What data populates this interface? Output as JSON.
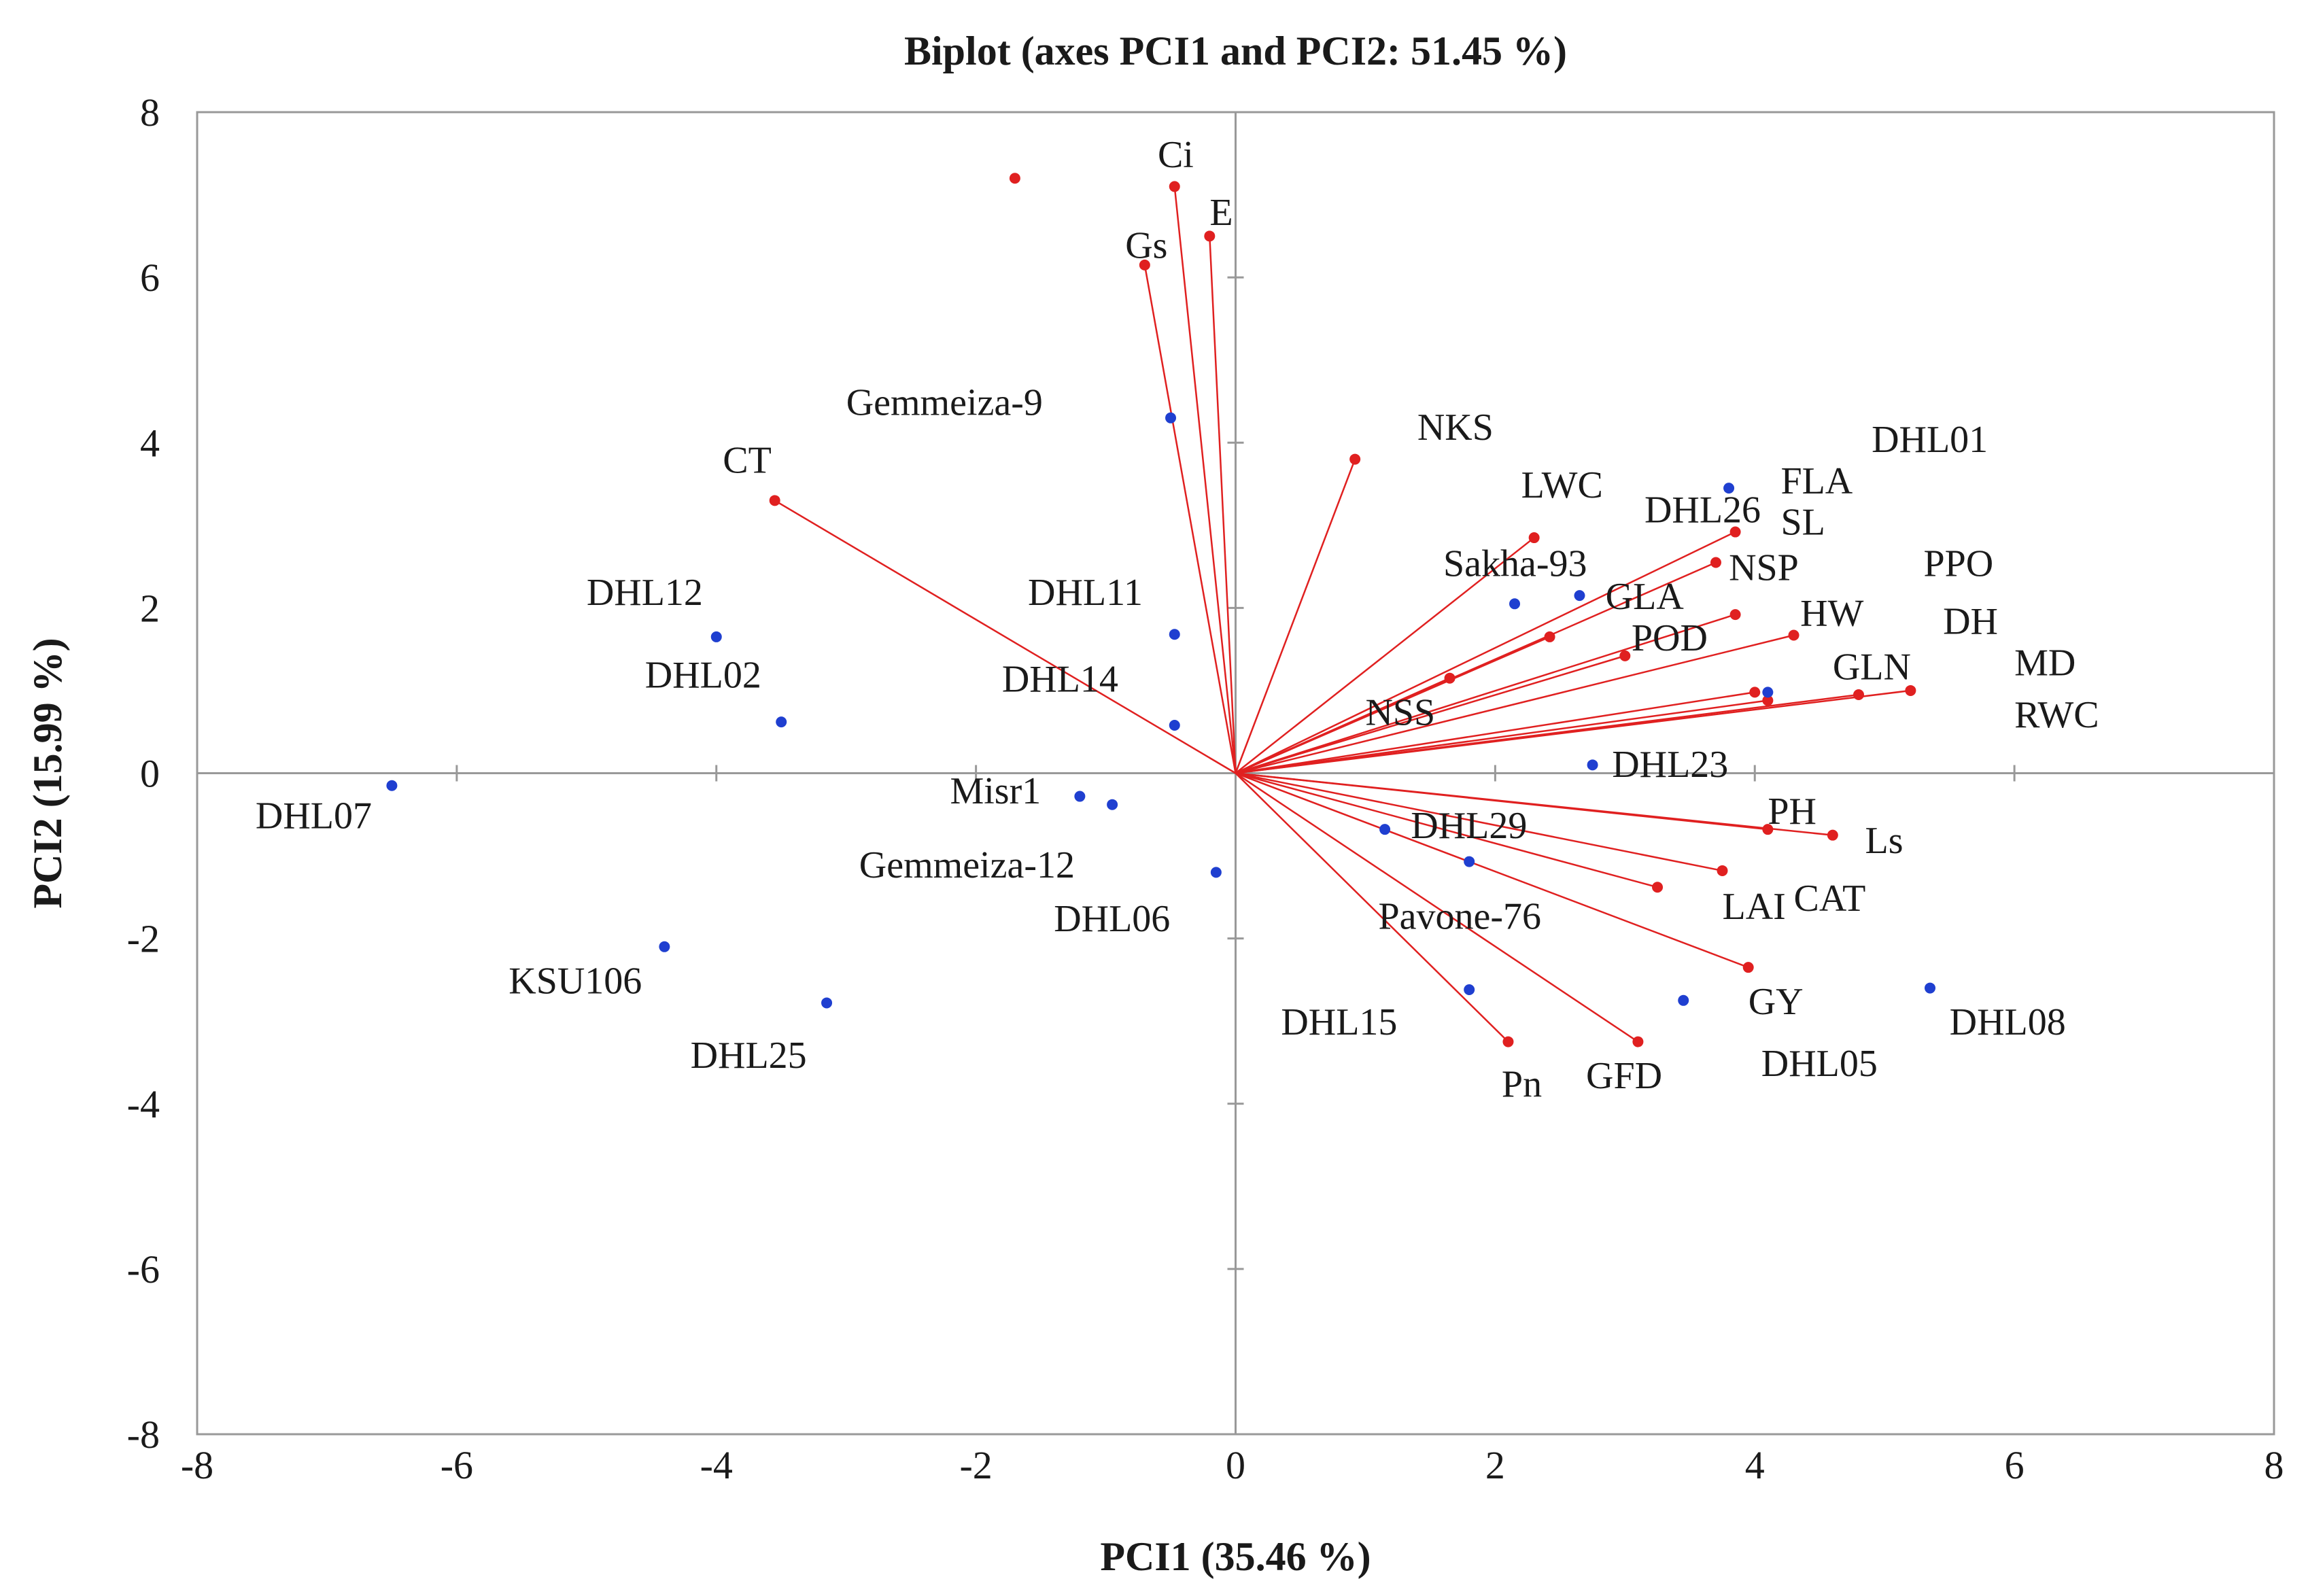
{
  "chart_data": {
    "type": "scatter",
    "title": "Biplot (axes PCI1 and PCI2: 51.45 %)",
    "xlabel": "PCI1 (35.46 %)",
    "ylabel": "PCI2 (15.99 %)",
    "xlim": [
      -8,
      8
    ],
    "ylim": [
      -8,
      8
    ],
    "xticks": [
      "-8",
      "-6",
      "-4",
      "-2",
      "0",
      "2",
      "4",
      "6",
      "8"
    ],
    "yticks": [
      "8",
      "6",
      "4",
      "2",
      "0",
      "-2",
      "-4",
      "-6",
      "-8"
    ],
    "colors": {
      "variables": "#e02020",
      "observations": "#1f3fd0",
      "axes": "#999999",
      "text": "#1a1a1a"
    },
    "variables": [
      {
        "name": "Ci",
        "x": -0.47,
        "y": 7.1
      },
      {
        "name": "E",
        "x": -0.2,
        "y": 6.5
      },
      {
        "name": "Gs",
        "x": -0.7,
        "y": 6.15
      },
      {
        "name": "CT",
        "x": -3.55,
        "y": 3.3
      },
      {
        "name": "NKS",
        "x": 0.92,
        "y": 3.8
      },
      {
        "name": "LWC",
        "x": 2.3,
        "y": 2.85
      },
      {
        "name": "SL",
        "x": 3.85,
        "y": 2.92
      },
      {
        "name": "NSP",
        "x": 3.7,
        "y": 2.55
      },
      {
        "name": "HW",
        "x": 3.85,
        "y": 1.92
      },
      {
        "name": "DH",
        "x": 4.3,
        "y": 1.67
      },
      {
        "name": "GLA",
        "x": 2.42,
        "y": 1.65
      },
      {
        "name": "POD",
        "x": 3.0,
        "y": 1.42
      },
      {
        "name": "GLN",
        "x": 4.0,
        "y": 0.98
      },
      {
        "name": "PPO",
        "x": 4.1,
        "y": 0.88
      },
      {
        "name": "MD",
        "x": 4.8,
        "y": 0.95
      },
      {
        "name": "RWC",
        "x": 5.2,
        "y": 1.0
      },
      {
        "name": "NSS",
        "x": 1.65,
        "y": 1.15
      },
      {
        "name": "PH",
        "x": 4.1,
        "y": -0.68
      },
      {
        "name": "Ls",
        "x": 4.6,
        "y": -0.75
      },
      {
        "name": "LAI",
        "x": 3.75,
        "y": -1.18
      },
      {
        "name": "CAT",
        "x": 3.25,
        "y": -1.38
      },
      {
        "name": "GY",
        "x": 3.95,
        "y": -2.35
      },
      {
        "name": "GFD",
        "x": 3.1,
        "y": -3.25
      },
      {
        "name": "Pn",
        "x": 2.1,
        "y": -3.25
      }
    ],
    "observations": [
      {
        "name": "DHL01",
        "x": 3.8,
        "y": 3.45
      },
      {
        "name": "DHL26",
        "x": 2.65,
        "y": 2.15
      },
      {
        "name": "Sakha-93",
        "x": 2.15,
        "y": 2.05
      },
      {
        "name": "FLA",
        "x": 4.1,
        "y": 0.98
      },
      {
        "name": "Gemmeiza-9",
        "x": -0.5,
        "y": 4.3
      },
      {
        "name": "DHL11",
        "x": -0.47,
        "y": 1.68
      },
      {
        "name": "DHL14",
        "x": -0.47,
        "y": 0.58
      },
      {
        "name": "DHL12",
        "x": -4.0,
        "y": 1.65
      },
      {
        "name": "DHL02",
        "x": -3.5,
        "y": 0.62
      },
      {
        "name": "DHL07",
        "x": -6.5,
        "y": -0.15
      },
      {
        "name": "Misr1",
        "x": -1.2,
        "y": -0.28
      },
      {
        "name": "Gemmeiza-12",
        "x": -0.95,
        "y": -0.38
      },
      {
        "name": "DHL06",
        "x": -0.15,
        "y": -1.2
      },
      {
        "name": "DHL23",
        "x": 2.75,
        "y": 0.1
      },
      {
        "name": "DHL29",
        "x": 1.15,
        "y": -0.68
      },
      {
        "name": "Pavone-76",
        "x": 1.8,
        "y": -1.07
      },
      {
        "name": "KSU106",
        "x": -4.4,
        "y": -2.1
      },
      {
        "name": "DHL25",
        "x": -3.15,
        "y": -2.78
      },
      {
        "name": "DHL15",
        "x": 1.8,
        "y": -2.62
      },
      {
        "name": "DHL05",
        "x": 3.45,
        "y": -2.75
      },
      {
        "name": "DHL08",
        "x": 5.35,
        "y": -2.6
      }
    ],
    "free_labels": [
      {
        "name": "Ci",
        "x": -0.6,
        "y": 7.5
      },
      {
        "name": "E",
        "x": -0.2,
        "y": 6.8
      },
      {
        "name": "Gs",
        "x": -0.85,
        "y": 6.4
      },
      {
        "name": "CT",
        "x": -3.95,
        "y": 3.8
      },
      {
        "name": "NKS",
        "x": 1.4,
        "y": 4.2
      },
      {
        "name": "LWC",
        "x": 2.2,
        "y": 3.5
      },
      {
        "name": "DHL26",
        "x": 3.15,
        "y": 3.2
      },
      {
        "name": "DHL01",
        "x": 4.9,
        "y": 4.05
      },
      {
        "name": "FLA",
        "x": 4.2,
        "y": 3.55
      },
      {
        "name": "SL",
        "x": 4.2,
        "y": 3.05
      },
      {
        "name": "Sakha-93",
        "x": 1.6,
        "y": 2.55
      },
      {
        "name": "NSP",
        "x": 3.8,
        "y": 2.5
      },
      {
        "name": "PPO",
        "x": 5.3,
        "y": 2.55
      },
      {
        "name": "GLA",
        "x": 2.85,
        "y": 2.15
      },
      {
        "name": "HW",
        "x": 4.35,
        "y": 1.95
      },
      {
        "name": "DH",
        "x": 5.45,
        "y": 1.85
      },
      {
        "name": "POD",
        "x": 3.05,
        "y": 1.65
      },
      {
        "name": "GLN",
        "x": 4.6,
        "y": 1.3
      },
      {
        "name": "MD",
        "x": 6.0,
        "y": 1.35
      },
      {
        "name": "NSS",
        "x": 1.0,
        "y": 0.75
      },
      {
        "name": "RWC",
        "x": 6.0,
        "y": 0.72
      },
      {
        "name": "DHL23",
        "x": 2.9,
        "y": 0.12
      },
      {
        "name": "PH",
        "x": 4.1,
        "y": -0.45
      },
      {
        "name": "Ls",
        "x": 4.85,
        "y": -0.8
      },
      {
        "name": "DHL29",
        "x": 1.35,
        "y": -0.62
      },
      {
        "name": "LAI",
        "x": 3.75,
        "y": -1.6
      },
      {
        "name": "CAT",
        "x": 4.3,
        "y": -1.5
      },
      {
        "name": "Pavone-76",
        "x": 1.1,
        "y": -1.72
      },
      {
        "name": "GY",
        "x": 3.95,
        "y": -2.75
      },
      {
        "name": "DHL08",
        "x": 5.5,
        "y": -3.0
      },
      {
        "name": "DHL15",
        "x": 0.35,
        "y": -3.0
      },
      {
        "name": "DHL05",
        "x": 4.05,
        "y": -3.5
      },
      {
        "name": "GFD",
        "x": 2.7,
        "y": -3.65
      },
      {
        "name": "Pn",
        "x": 2.05,
        "y": -3.75
      },
      {
        "name": "Gemmeiza-9",
        "x": -3.0,
        "y": 4.5
      },
      {
        "name": "DHL12",
        "x": -5.0,
        "y": 2.2
      },
      {
        "name": "DHL02",
        "x": -4.55,
        "y": 1.2
      },
      {
        "name": "DHL11",
        "x": -1.6,
        "y": 2.2
      },
      {
        "name": "DHL14",
        "x": -1.8,
        "y": 1.15
      },
      {
        "name": "DHL07",
        "x": -7.55,
        "y": -0.5
      },
      {
        "name": "Misr1",
        "x": -2.2,
        "y": -0.2
      },
      {
        "name": "Gemmeiza-12",
        "x": -2.9,
        "y": -1.1
      },
      {
        "name": "DHL06",
        "x": -1.4,
        "y": -1.75
      },
      {
        "name": "KSU106",
        "x": -5.6,
        "y": -2.5
      },
      {
        "name": "DHL25",
        "x": -4.2,
        "y": -3.4
      }
    ]
  }
}
